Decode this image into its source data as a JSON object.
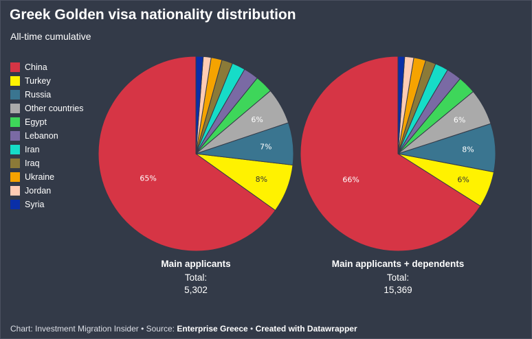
{
  "title": "Greek Golden visa nationality distribution",
  "subtitle": "All-time cumulative",
  "legend": [
    {
      "label": "China",
      "color": "#d63545"
    },
    {
      "label": "Turkey",
      "color": "#fff200"
    },
    {
      "label": "Russia",
      "color": "#3a7590"
    },
    {
      "label": "Other countries",
      "color": "#aaaaaa"
    },
    {
      "label": "Egypt",
      "color": "#3ed65a"
    },
    {
      "label": "Lebanon",
      "color": "#7a6aa4"
    },
    {
      "label": "Iran",
      "color": "#16dcc8"
    },
    {
      "label": "Iraq",
      "color": "#8b7a38"
    },
    {
      "label": "Ukraine",
      "color": "#f5a300"
    },
    {
      "label": "Jordan",
      "color": "#ffccb4"
    },
    {
      "label": "Syria",
      "color": "#0a2fa8"
    }
  ],
  "chart_data": [
    {
      "type": "pie",
      "name": "Main applicants",
      "total_label": "Total:",
      "total": "5,302",
      "categories": [
        "China",
        "Turkey",
        "Russia",
        "Other countries",
        "Egypt",
        "Lebanon",
        "Iran",
        "Iraq",
        "Ukraine",
        "Jordan",
        "Syria"
      ],
      "values": [
        65,
        8,
        7,
        6,
        3,
        2.5,
        2.2,
        1.8,
        1.8,
        1.3,
        1.2
      ],
      "data_labels": [
        "65%",
        "8%",
        "7%",
        "6%",
        "",
        "",
        "",
        "",
        "",
        "",
        ""
      ]
    },
    {
      "type": "pie",
      "name": "Main applicants + dependents",
      "total_label": "Total:",
      "total": "15,369",
      "categories": [
        "China",
        "Turkey",
        "Russia",
        "Other countries",
        "Egypt",
        "Lebanon",
        "Iran",
        "Iraq",
        "Ukraine",
        "Jordan",
        "Syria"
      ],
      "values": [
        66,
        6,
        8,
        6,
        3,
        2.5,
        2.2,
        1.7,
        2,
        1.5,
        1.1
      ],
      "data_labels": [
        "66%",
        "6%",
        "8%",
        "6%",
        "",
        "",
        "",
        "",
        "",
        "",
        ""
      ]
    }
  ],
  "footer": {
    "prefix": "Chart: Investment Migration Insider • Source: ",
    "source": "Enterprise Greece",
    "separator": " • ",
    "credit": "Created with Datawrapper"
  }
}
